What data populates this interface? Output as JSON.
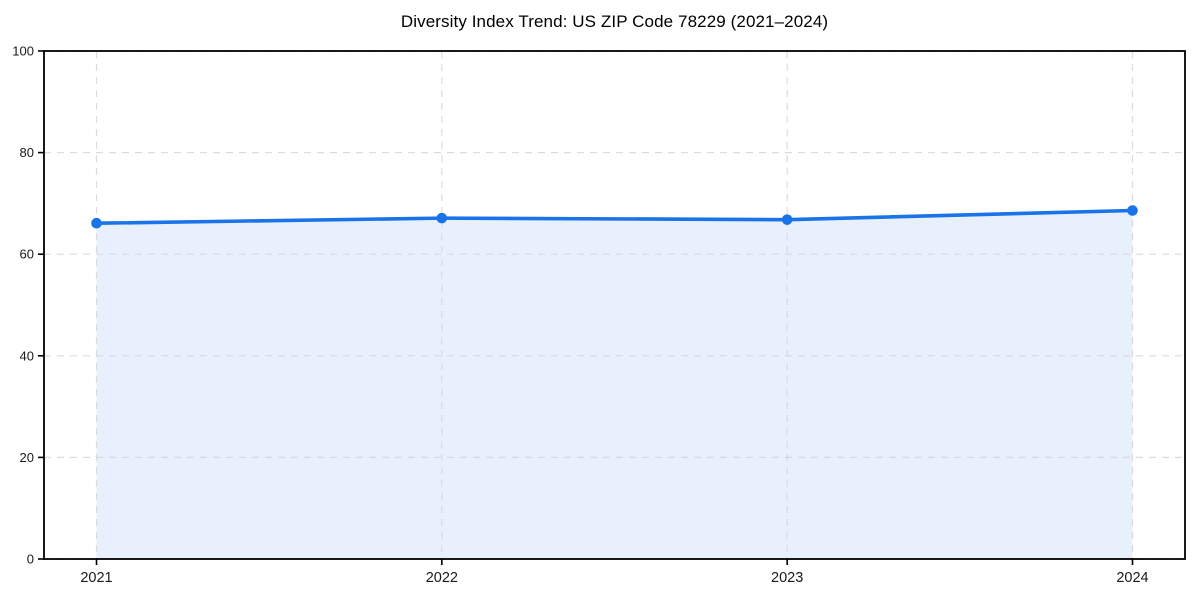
{
  "chart_data": {
    "type": "area",
    "title": "Diversity Index Trend: US ZIP Code 78229 (2021–2024)",
    "categories": [
      "2021",
      "2022",
      "2023",
      "2024"
    ],
    "series": [
      {
        "name": "Diversity Index",
        "values": [
          66.1,
          67.1,
          66.8,
          68.6
        ]
      }
    ],
    "xlabel": "",
    "ylabel": "",
    "ylim": [
      0,
      100
    ],
    "yticks": [
      0,
      20,
      40,
      60,
      80,
      100
    ],
    "grid": true,
    "grid_style": "dashed",
    "legend": "none",
    "marker": "circle",
    "colors": {
      "line": "#1a73e8",
      "marker": "#1a73e8",
      "fill": "#e8f0fe",
      "grid": "#d6d6d6",
      "axis": "#000000",
      "tick_label": "#1a1a1a",
      "title": "#000000",
      "background": "#ffffff"
    }
  }
}
